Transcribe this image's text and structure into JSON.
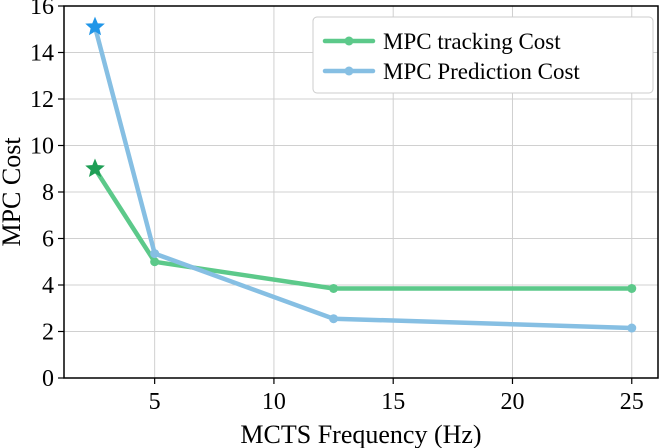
{
  "chart_data": {
    "type": "line",
    "title": "",
    "xlabel": "MCTS Frequency (Hz)",
    "ylabel": "MPC Cost",
    "xlim": [
      1.2,
      26.1
    ],
    "ylim": [
      0,
      16
    ],
    "xticks": [
      5,
      10,
      15,
      20,
      25
    ],
    "yticks": [
      0,
      2,
      4,
      6,
      8,
      10,
      12,
      14,
      16
    ],
    "grid": true,
    "legend_position": "top-right",
    "series": [
      {
        "name": "MPC tracking Cost",
        "color": "#5cc98a",
        "star_color": "#1e9e55",
        "x": [
          2.5,
          5,
          12.5,
          25
        ],
        "y": [
          9.0,
          5.0,
          3.85,
          3.85
        ]
      },
      {
        "name": "MPC Prediction Cost",
        "color": "#86bfe3",
        "star_color": "#2196e8",
        "x": [
          2.5,
          5,
          12.5,
          25
        ],
        "y": [
          15.1,
          5.35,
          2.55,
          2.15
        ]
      }
    ]
  }
}
